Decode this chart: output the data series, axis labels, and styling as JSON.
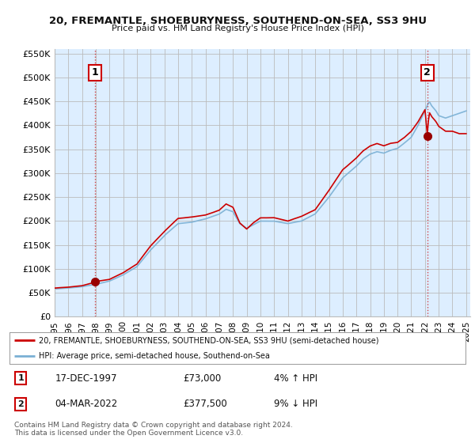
{
  "title_line1": "20, FREMANTLE, SHOEBURYNESS, SOUTHEND-ON-SEA, SS3 9HU",
  "title_line2": "Price paid vs. HM Land Registry's House Price Index (HPI)",
  "xlim_start": 1995.0,
  "xlim_end": 2025.3,
  "ylim_min": 0,
  "ylim_max": 560000,
  "yticks": [
    0,
    50000,
    100000,
    150000,
    200000,
    250000,
    300000,
    350000,
    400000,
    450000,
    500000,
    550000
  ],
  "ytick_labels": [
    "£0",
    "£50K",
    "£100K",
    "£150K",
    "£200K",
    "£250K",
    "£300K",
    "£350K",
    "£400K",
    "£450K",
    "£500K",
    "£550K"
  ],
  "xtick_years": [
    1995,
    1996,
    1997,
    1998,
    1999,
    2000,
    2001,
    2002,
    2003,
    2004,
    2005,
    2006,
    2007,
    2008,
    2009,
    2010,
    2011,
    2012,
    2013,
    2014,
    2015,
    2016,
    2017,
    2018,
    2019,
    2020,
    2021,
    2022,
    2023,
    2024,
    2025
  ],
  "sale1_x": 1997.96,
  "sale1_y": 73000,
  "sale2_x": 2022.17,
  "sale2_y": 377500,
  "property_line_color": "#cc0000",
  "hpi_line_color": "#7ab0d4",
  "sale_dot_color": "#990000",
  "vline_color": "#cc0000",
  "grid_color": "#bbbbbb",
  "plot_bg_color": "#ddeeff",
  "bg_color": "#ffffff",
  "legend_line1": "20, FREMANTLE, SHOEBURYNESS, SOUTHEND-ON-SEA, SS3 9HU (semi-detached house)",
  "legend_line2": "HPI: Average price, semi-detached house, Southend-on-Sea",
  "footer_line1": "Contains HM Land Registry data © Crown copyright and database right 2024.",
  "footer_line2": "This data is licensed under the Open Government Licence v3.0.",
  "sale1_label": "1",
  "sale1_date": "17-DEC-1997",
  "sale1_price": "£73,000",
  "sale1_hpi": "4% ↑ HPI",
  "sale2_label": "2",
  "sale2_date": "04-MAR-2022",
  "sale2_price": "£377,500",
  "sale2_hpi": "9% ↓ HPI"
}
